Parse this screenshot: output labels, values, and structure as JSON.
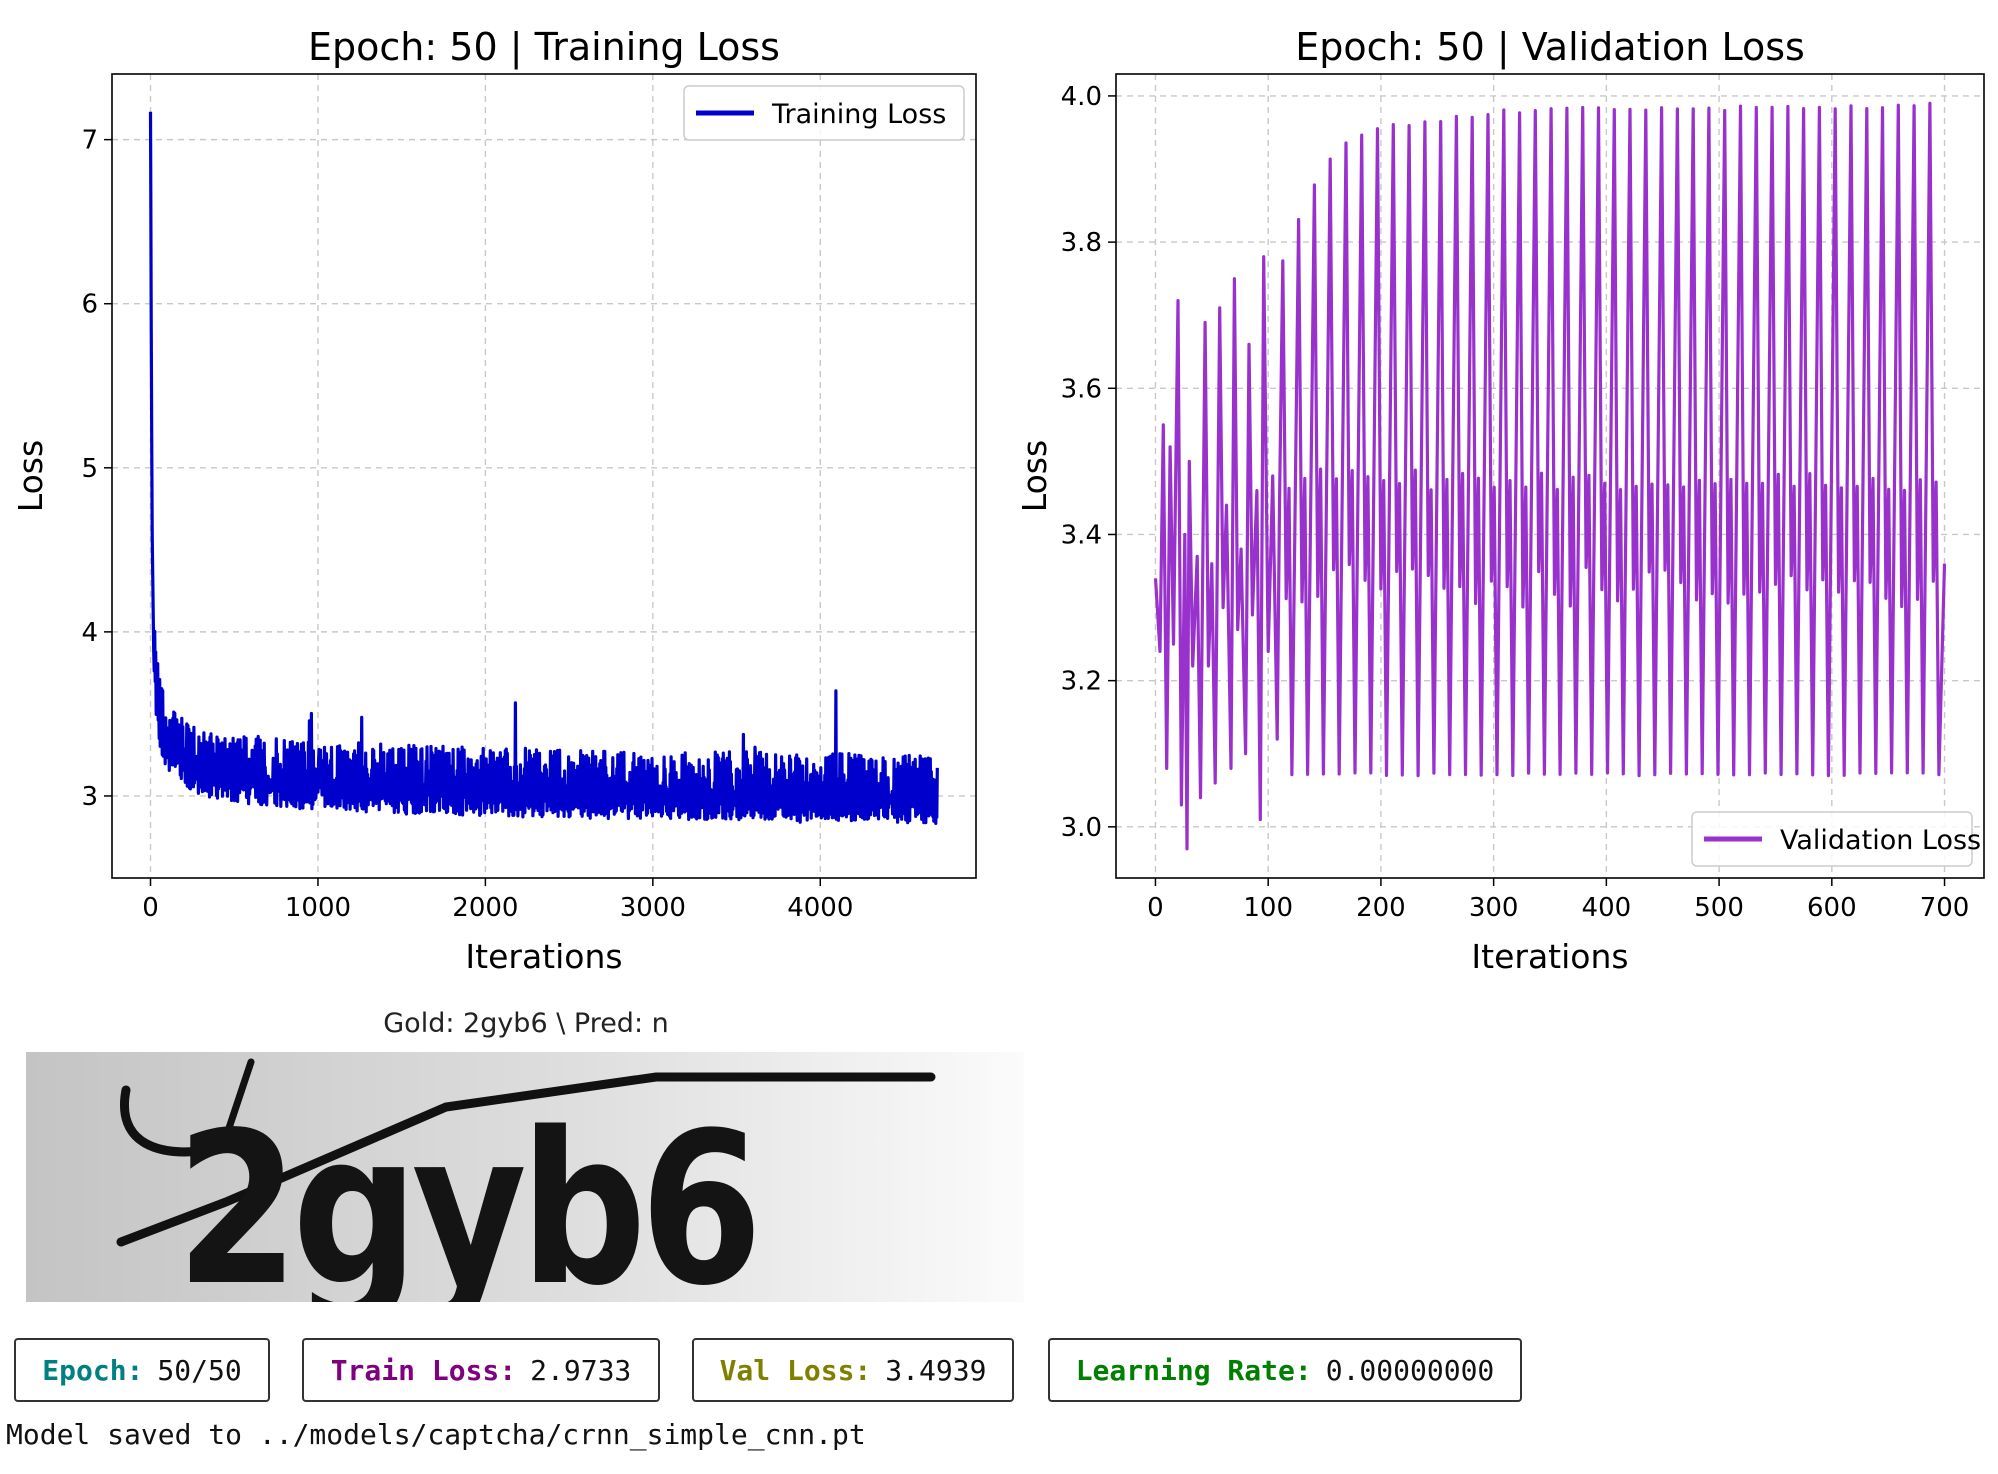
{
  "chart_data": [
    {
      "type": "line",
      "title": "Epoch: 50 | Training Loss",
      "xlabel": "Iterations",
      "ylabel": "Loss",
      "xlim": [
        -230,
        4930
      ],
      "ylim": [
        2.5,
        7.4
      ],
      "xticks": [
        0,
        1000,
        2000,
        3000,
        4000
      ],
      "yticks": [
        3,
        4,
        5,
        6,
        7
      ],
      "grid": true,
      "legend": "top-right",
      "series": [
        {
          "name": "Training Loss",
          "color": "#0000cd",
          "x": [
            0,
            5,
            10,
            20,
            40,
            60,
            80,
            100,
            150,
            200,
            250,
            300,
            400,
            500,
            600,
            700,
            800,
            900,
            1000,
            1100,
            1200,
            1300,
            1400,
            1500,
            1600,
            1800,
            2000,
            2200,
            2400,
            2600,
            2800,
            3000,
            3200,
            3400,
            3600,
            3800,
            4000,
            4200,
            4400,
            4600,
            4700
          ],
          "y": [
            7.17,
            5.6,
            4.6,
            3.8,
            3.55,
            3.42,
            3.36,
            3.3,
            3.25,
            3.2,
            3.16,
            3.14,
            3.12,
            3.1,
            3.09,
            3.08,
            3.07,
            3.06,
            3.06,
            3.05,
            3.05,
            3.04,
            3.04,
            3.03,
            3.03,
            3.02,
            3.02,
            3.01,
            3.01,
            3.0,
            3.0,
            3.0,
            2.99,
            2.99,
            2.99,
            2.98,
            2.98,
            2.98,
            2.98,
            2.97,
            2.97
          ],
          "noise_band": [
            0.28,
            0.14
          ]
        }
      ]
    },
    {
      "type": "line",
      "title": "Epoch: 50 | Validation Loss",
      "xlabel": "Iterations",
      "ylabel": "Loss",
      "xlim": [
        -35,
        735
      ],
      "ylim": [
        2.93,
        4.03
      ],
      "xticks": [
        0,
        100,
        200,
        300,
        400,
        500,
        600,
        700
      ],
      "yticks": [
        3.0,
        3.2,
        3.4,
        3.6,
        3.8,
        4.0
      ],
      "ytick_format": "fixed1",
      "grid": true,
      "legend": "bottom-right",
      "series": [
        {
          "name": "Validation Loss",
          "color": "#9932cc",
          "period": 14,
          "x": [
            0,
            4,
            7,
            10,
            13,
            16,
            20,
            23,
            26,
            28,
            30,
            33,
            37,
            40,
            44,
            47,
            50,
            53,
            57,
            60,
            63,
            67,
            70,
            73,
            76,
            80,
            83,
            86,
            90,
            93,
            96,
            100,
            104,
            108,
            110
          ],
          "y": [
            3.34,
            3.24,
            3.55,
            3.08,
            3.52,
            3.25,
            3.72,
            3.03,
            3.4,
            2.97,
            3.5,
            3.22,
            3.37,
            3.04,
            3.69,
            3.22,
            3.36,
            3.06,
            3.71,
            3.3,
            3.44,
            3.08,
            3.75,
            3.27,
            3.38,
            3.1,
            3.66,
            3.29,
            3.46,
            3.01,
            3.78,
            3.24,
            3.48,
            3.12,
            3.44
          ],
          "envelope_upper_x": [
            112,
            130,
            150,
            170,
            200,
            250,
            300,
            350,
            400,
            450,
            500,
            550,
            600,
            650,
            690
          ],
          "envelope_upper_y": [
            3.77,
            3.85,
            3.91,
            3.94,
            3.96,
            3.97,
            3.98,
            3.985,
            3.985,
            3.985,
            3.985,
            3.99,
            3.985,
            3.99,
            3.99
          ],
          "envelope_lower": 3.07,
          "end_value": 3.36
        }
      ]
    }
  ],
  "captcha": {
    "title": "Gold: 2gyb6 \\ Pred: n",
    "text": "2gyb6"
  },
  "stats": {
    "epoch": {
      "label": "Epoch:",
      "value": "50/50",
      "color": "#008080"
    },
    "train_loss": {
      "label": "Train Loss:",
      "value": "2.9733",
      "color": "#800080"
    },
    "val_loss": {
      "label": "Val Loss:",
      "value": "3.4939",
      "color": "#808000"
    },
    "learning_rate": {
      "label": "Learning Rate:",
      "value": "0.00000000",
      "color": "#008000"
    }
  },
  "message": "Model saved to ../models/captcha/crnn_simple_cnn.pt"
}
